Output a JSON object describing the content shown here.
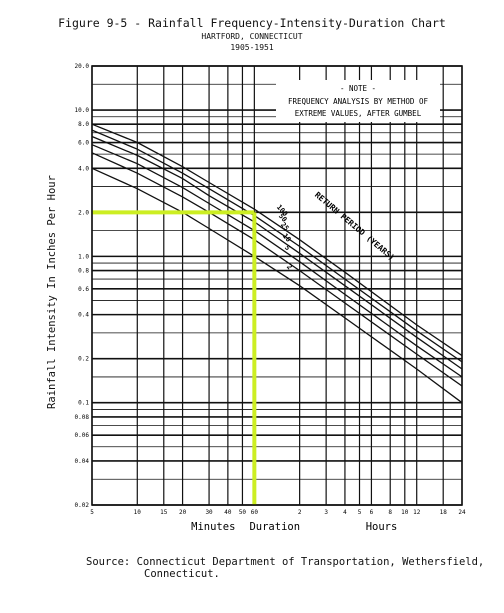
{
  "title": "Figure 9-5 - Rainfall Frequency-Intensity-Duration Chart",
  "subtitle_location": "HARTFORD, CONNECTICUT",
  "subtitle_years": "1905-1951",
  "source_line1": "Source:  Connecticut Department of Transportation, Wethersfield,",
  "source_line2": "Connecticut.",
  "note": {
    "heading": "- NOTE -",
    "line1": "FREQUENCY ANALYSIS BY METHOD OF",
    "line2": "EXTREME VALUES, AFTER GUMBEL"
  },
  "colors": {
    "highlight": "#ccee22",
    "ink": "#111111"
  },
  "chart_data": {
    "type": "line",
    "ylabel": "Rainfall Intensity In Inches Per Hour",
    "xlabel_groups": [
      "Minutes",
      "Duration",
      "Hours"
    ],
    "x_units": "minutes",
    "x_scale": "log",
    "y_scale": "log",
    "xlim": [
      5,
      1440
    ],
    "ylim": [
      0.02,
      20
    ],
    "grid": true,
    "x_ticks": [
      {
        "v": 5,
        "l": "5"
      },
      {
        "v": 10,
        "l": "10"
      },
      {
        "v": 15,
        "l": "15"
      },
      {
        "v": 20,
        "l": "20"
      },
      {
        "v": 30,
        "l": "30"
      },
      {
        "v": 40,
        "l": "40"
      },
      {
        "v": 50,
        "l": "50"
      },
      {
        "v": 60,
        "l": "60"
      },
      {
        "v": 120,
        "l": "2"
      },
      {
        "v": 180,
        "l": "3"
      },
      {
        "v": 240,
        "l": "4"
      },
      {
        "v": 300,
        "l": "5"
      },
      {
        "v": 360,
        "l": "6"
      },
      {
        "v": 480,
        "l": "8"
      },
      {
        "v": 600,
        "l": "10"
      },
      {
        "v": 720,
        "l": "12"
      },
      {
        "v": 1080,
        "l": "18"
      },
      {
        "v": 1440,
        "l": "24"
      }
    ],
    "y_ticks": [
      {
        "v": 20,
        "l": "20.0"
      },
      {
        "v": 10,
        "l": "10.0"
      },
      {
        "v": 8,
        "l": "8.0"
      },
      {
        "v": 6,
        "l": "6.0"
      },
      {
        "v": 4,
        "l": "4.0"
      },
      {
        "v": 2,
        "l": "2.0"
      },
      {
        "v": 1,
        "l": "1.0"
      },
      {
        "v": 0.8,
        "l": "0.8"
      },
      {
        "v": 0.6,
        "l": "0.6"
      },
      {
        "v": 0.4,
        "l": "0.4"
      },
      {
        "v": 0.2,
        "l": "0.2"
      },
      {
        "v": 0.1,
        "l": "0.1"
      },
      {
        "v": 0.08,
        "l": "0.08"
      },
      {
        "v": 0.06,
        "l": "0.06"
      },
      {
        "v": 0.04,
        "l": "0.04"
      },
      {
        "v": 0.02,
        "l": "0.02"
      }
    ],
    "curve_group_label": "RETURN PERIOD (YEARS)",
    "series": [
      {
        "name": "100",
        "x": [
          5,
          10,
          20,
          30,
          60,
          120,
          240,
          720,
          1440
        ],
        "y": [
          8.0,
          6.0,
          4.1,
          3.2,
          2.1,
          1.3,
          0.78,
          0.34,
          0.21
        ]
      },
      {
        "name": "50",
        "x": [
          5,
          10,
          20,
          30,
          60,
          120,
          240,
          720,
          1440
        ],
        "y": [
          7.3,
          5.4,
          3.7,
          2.9,
          1.9,
          1.17,
          0.7,
          0.31,
          0.19
        ]
      },
      {
        "name": "25",
        "x": [
          5,
          10,
          20,
          30,
          60,
          120,
          240,
          720,
          1440
        ],
        "y": [
          6.6,
          4.9,
          3.4,
          2.6,
          1.72,
          1.05,
          0.63,
          0.28,
          0.17
        ]
      },
      {
        "name": "10",
        "x": [
          5,
          10,
          20,
          30,
          60,
          120,
          240,
          720,
          1440
        ],
        "y": [
          5.8,
          4.3,
          2.95,
          2.3,
          1.5,
          0.92,
          0.55,
          0.245,
          0.15
        ]
      },
      {
        "name": "5",
        "x": [
          5,
          10,
          20,
          30,
          60,
          120,
          240,
          720,
          1440
        ],
        "y": [
          5.1,
          3.7,
          2.55,
          2.0,
          1.3,
          0.8,
          0.48,
          0.215,
          0.13
        ]
      },
      {
        "name": "2",
        "x": [
          5,
          10,
          20,
          30,
          60,
          120,
          240,
          720,
          1440
        ],
        "y": [
          4.0,
          2.9,
          2.0,
          1.55,
          1.0,
          0.63,
          0.38,
          0.17,
          0.1
        ]
      }
    ],
    "highlight": {
      "x": 60,
      "y": 2.0
    }
  }
}
